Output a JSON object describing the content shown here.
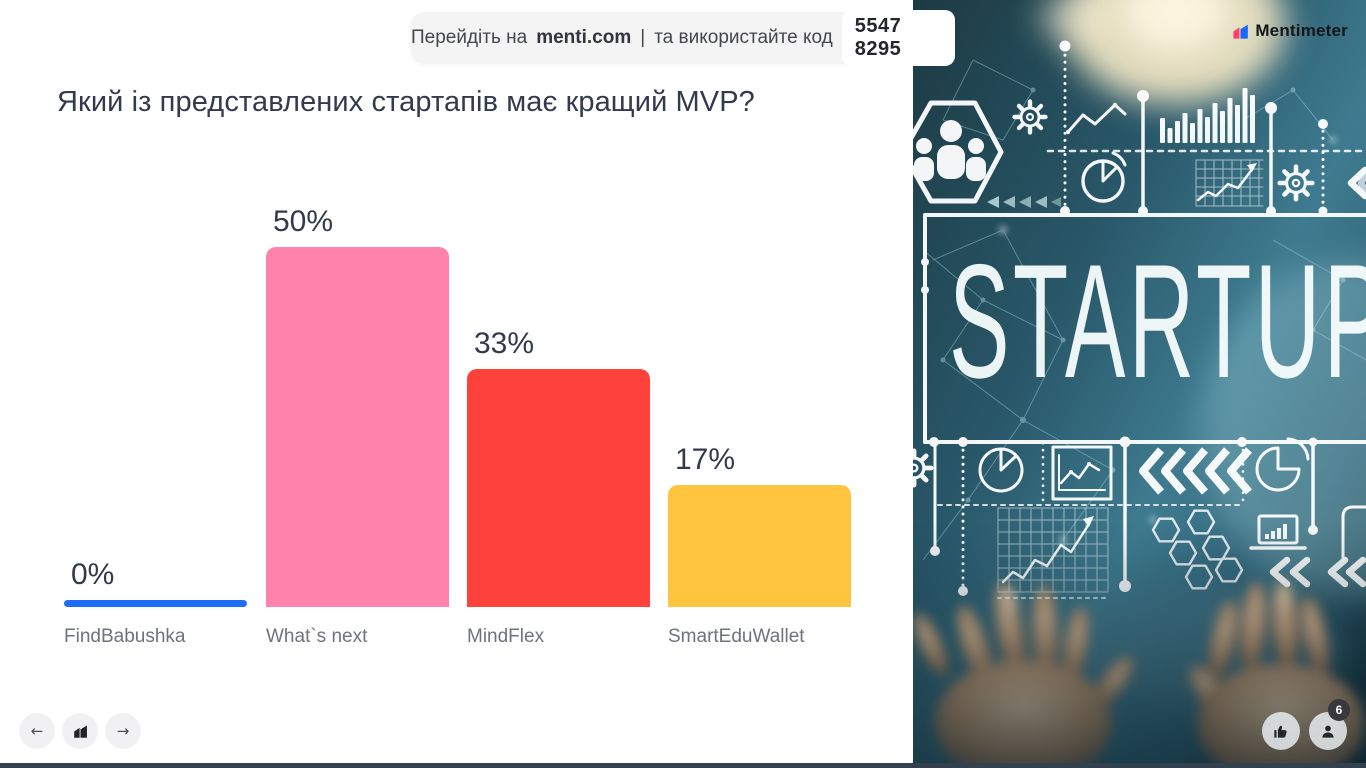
{
  "banner": {
    "prefix": "Перейдіть на",
    "site": "menti.com",
    "separator": "|",
    "suffix": "та використайте код",
    "code": "5547 8295"
  },
  "header": {
    "logo_text": "Mentimeter"
  },
  "slide": {
    "title": "Який із представлених стартапів має кращий MVP?"
  },
  "chart_data": {
    "type": "bar",
    "categories": [
      "FindBabushka",
      "What`s next",
      "MindFlex",
      "SmartEduWallet"
    ],
    "values": [
      0,
      50,
      33,
      17
    ],
    "value_labels": [
      "0%",
      "50%",
      "33%",
      "17%"
    ],
    "colors": [
      "#1d6ef5",
      "#ff82ad",
      "#ff413c",
      "#ffc53e"
    ],
    "title": "Який із представлених стартапів має кращий MVP?",
    "xlabel": "",
    "ylabel": "",
    "ylim": [
      0,
      100
    ],
    "unit": "%",
    "grid": false,
    "legend": "none",
    "bar_style": "rounded-top, 0% shown as blue pill line"
  },
  "photo": {
    "overlay_text": "STARTUP",
    "icon_names": [
      "people-hexagon-icon",
      "gear-icon",
      "line-chart-icon",
      "bar-chart-icon",
      "pie-chart-icon",
      "growth-chart-icon",
      "chevrons-icon",
      "hexagon-cluster-icon",
      "laptop-chart-icon",
      "network-dots"
    ]
  },
  "footer": {
    "nav": {
      "back_icon": "arrow-left",
      "logo_icon": "mentimeter-m",
      "forward_icon": "arrow-right",
      "back_glyph": "←",
      "forward_glyph": "→"
    },
    "reactions": {
      "like_icon": "thumbs-up",
      "participants_icon": "person",
      "participants_count": "6"
    }
  },
  "colors": {
    "accent_blue": "#1d6ef5",
    "bar_pink": "#ff82ad",
    "bar_red": "#ff413c",
    "bar_yellow": "#ffc53e",
    "title_text": "#333a4d",
    "category_text": "#6e737c",
    "banner_bg": "#f4f4f5",
    "bottom_bar": "#33404d"
  }
}
